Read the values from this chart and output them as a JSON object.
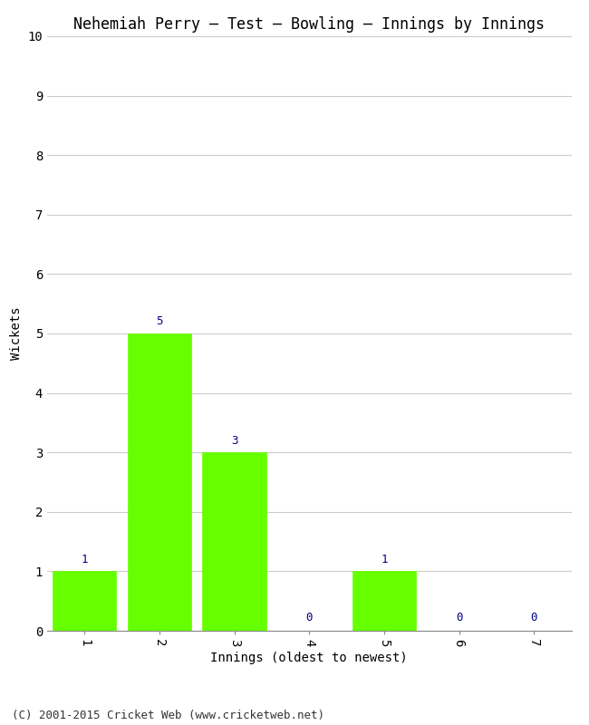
{
  "title": "Nehemiah Perry – Test – Bowling – Innings by Innings",
  "xlabel": "Innings (oldest to newest)",
  "ylabel": "Wickets",
  "categories": [
    "1",
    "2",
    "3",
    "4",
    "5",
    "6",
    "7"
  ],
  "values": [
    1,
    5,
    3,
    0,
    1,
    0,
    0
  ],
  "bar_color": "#66ff00",
  "bar_edge_color": "#66ff00",
  "label_color": "#000080",
  "ylim": [
    0,
    10
  ],
  "yticks": [
    0,
    1,
    2,
    3,
    4,
    5,
    6,
    7,
    8,
    9,
    10
  ],
  "background_color": "#ffffff",
  "grid_color": "#cccccc",
  "title_fontsize": 12,
  "axis_label_fontsize": 10,
  "tick_fontsize": 10,
  "value_label_fontsize": 9,
  "footer": "(C) 2001-2015 Cricket Web (www.cricketweb.net)",
  "footer_fontsize": 9
}
